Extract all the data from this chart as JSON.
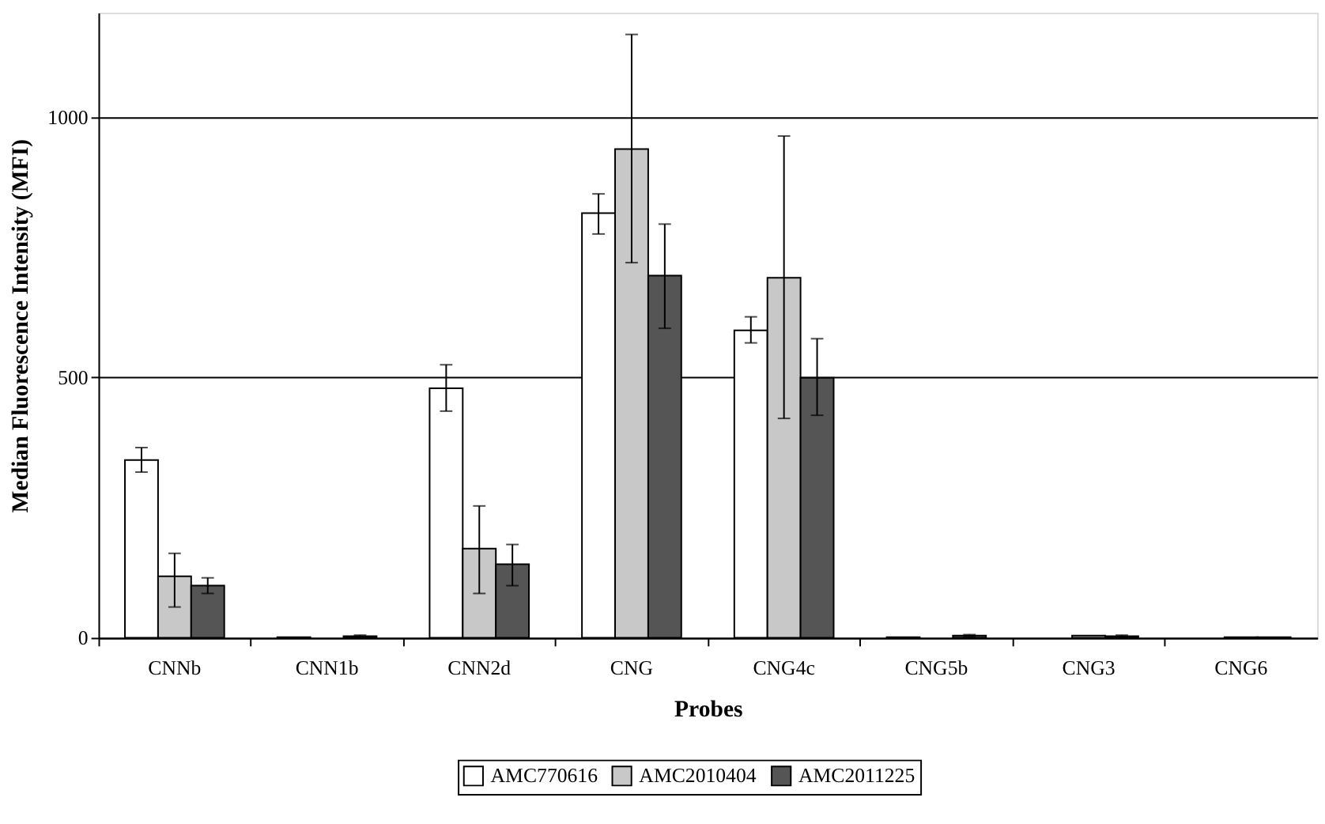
{
  "chart_data": {
    "type": "bar",
    "xlabel": "Probes",
    "ylabel": "Median Fluorescence Intensity (MFI)",
    "categories": [
      "CNNb",
      "CNN1b",
      "CNN2d",
      "CNG",
      "CNG4c",
      "CNG5b",
      "CNG3",
      "CNG6"
    ],
    "series": [
      {
        "name": "AMC770616",
        "color": "#ffffff",
        "values": [
          341,
          1,
          479,
          815,
          590,
          1,
          null,
          null
        ],
        "errors": [
          [
            318,
            365
          ],
          null,
          [
            435,
            524
          ],
          [
            775,
            852
          ],
          [
            566,
            616
          ],
          null,
          null,
          null
        ]
      },
      {
        "name": "AMC2010404",
        "color": "#c8c8c8",
        "values": [
          118,
          null,
          171,
          938,
          691,
          null,
          4,
          1
        ],
        "errors": [
          [
            59,
            162
          ],
          null,
          [
            85,
            253
          ],
          [
            720,
            1158
          ],
          [
            421,
            963
          ],
          null,
          null,
          null
        ]
      },
      {
        "name": "AMC2011225",
        "color": "#555555",
        "values": [
          100,
          3,
          141,
          695,
          499,
          4,
          3,
          1
        ],
        "errors": [
          [
            85,
            115
          ],
          [
            1,
            5
          ],
          [
            100,
            179
          ],
          [
            594,
            794
          ],
          [
            427,
            574
          ],
          [
            2,
            6
          ],
          [
            1,
            5
          ],
          null
        ]
      }
    ],
    "ylim": [
      0,
      1200
    ],
    "yticks": [
      0,
      500,
      1000
    ],
    "grid": "y",
    "legend": "bottom"
  }
}
